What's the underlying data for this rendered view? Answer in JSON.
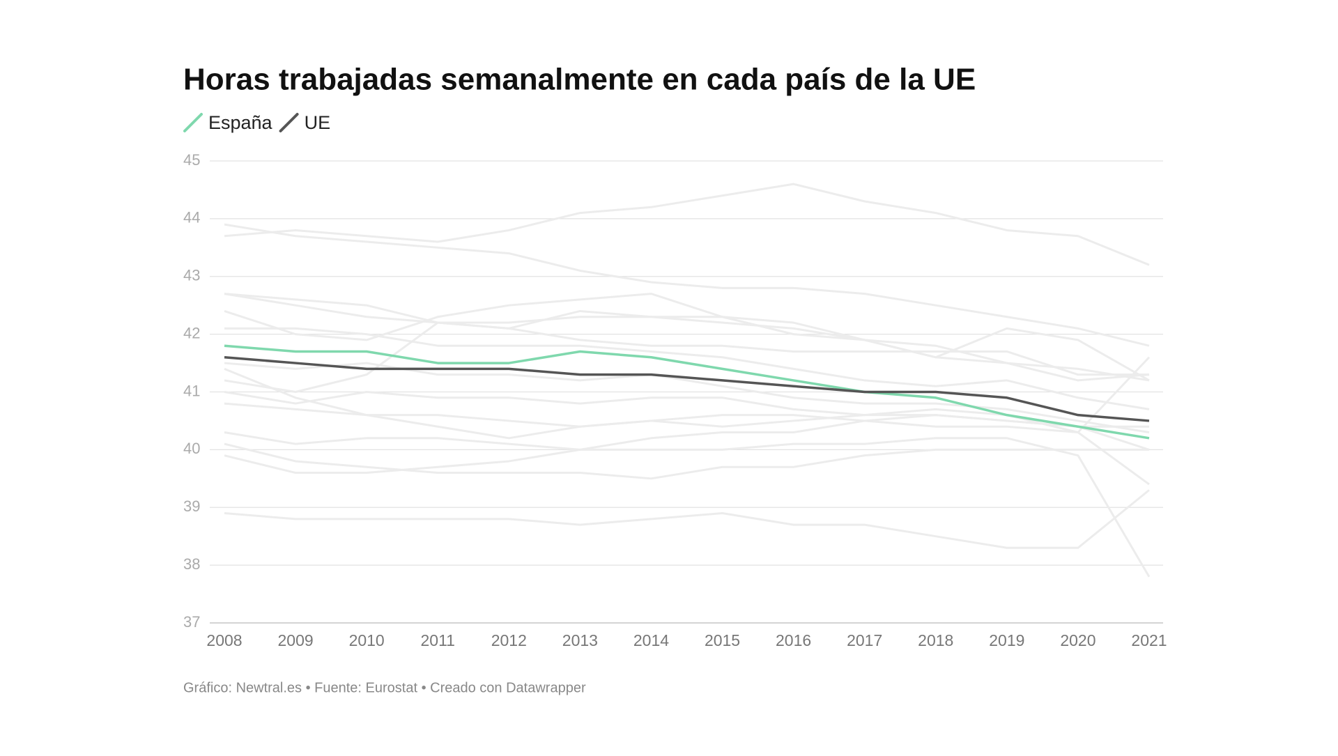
{
  "chart_data": {
    "type": "line",
    "title": "Horas trabajadas semanalmente en cada país de la UE",
    "categories": [
      "2008",
      "2009",
      "2010",
      "2011",
      "2012",
      "2013",
      "2014",
      "2015",
      "2016",
      "2017",
      "2018",
      "2019",
      "2020",
      "2021"
    ],
    "series": [
      {
        "color": "#ececec",
        "values": [
          43.7,
          43.8,
          43.7,
          43.6,
          43.8,
          44.1,
          44.2,
          44.4,
          44.6,
          44.3,
          44.1,
          43.8,
          43.7,
          43.2
        ]
      },
      {
        "color": "#ececec",
        "values": [
          43.9,
          43.7,
          43.6,
          43.5,
          43.4,
          43.1,
          42.9,
          42.8,
          42.8,
          42.7,
          42.5,
          42.3,
          42.1,
          41.8
        ]
      },
      {
        "color": "#ececec",
        "values": [
          42.7,
          42.6,
          42.5,
          42.2,
          42.1,
          41.9,
          41.8,
          41.8,
          41.7,
          41.7,
          41.7,
          41.7,
          41.3,
          41.3
        ]
      },
      {
        "color": "#ececec",
        "values": [
          42.7,
          42.5,
          42.3,
          42.2,
          42.2,
          42.3,
          42.3,
          42.3,
          42.0,
          41.9,
          41.8,
          41.5,
          41.4,
          41.2
        ]
      },
      {
        "color": "#ececec",
        "values": [
          42.4,
          42.0,
          41.9,
          42.3,
          42.5,
          42.6,
          42.7,
          42.3,
          42.2,
          41.9,
          41.6,
          41.5,
          41.2,
          41.3
        ]
      },
      {
        "color": "#ececec",
        "values": [
          41.2,
          41.0,
          41.3,
          42.2,
          42.1,
          42.4,
          42.3,
          42.2,
          42.1,
          41.9,
          41.6,
          42.1,
          41.9,
          41.2
        ]
      },
      {
        "color": "#ececec",
        "values": [
          42.1,
          42.1,
          42.0,
          41.8,
          41.8,
          41.8,
          41.7,
          41.6,
          41.4,
          41.2,
          41.1,
          41.2,
          40.9,
          40.7
        ]
      },
      {
        "color": "#ececec",
        "values": [
          41.4,
          40.9,
          40.6,
          40.4,
          40.2,
          40.4,
          40.5,
          40.6,
          40.6,
          40.5,
          40.4,
          40.4,
          40.3,
          39.4
        ]
      },
      {
        "color": "#ececec",
        "values": [
          40.3,
          40.1,
          40.2,
          40.2,
          40.1,
          40.0,
          40.0,
          40.0,
          40.1,
          40.1,
          40.2,
          40.2,
          39.9,
          37.8
        ]
      },
      {
        "color": "#ececec",
        "values": [
          38.9,
          38.8,
          38.8,
          38.8,
          38.8,
          38.7,
          38.8,
          38.9,
          38.7,
          38.7,
          38.5,
          38.3,
          38.3,
          39.3
        ]
      },
      {
        "color": "#ececec",
        "values": [
          39.9,
          39.6,
          39.6,
          39.7,
          39.8,
          40.0,
          40.2,
          40.3,
          40.3,
          40.5,
          40.6,
          40.5,
          40.4,
          40.0
        ]
      },
      {
        "color": "#ececec",
        "values": [
          40.1,
          39.8,
          39.7,
          39.6,
          39.6,
          39.6,
          39.5,
          39.7,
          39.7,
          39.9,
          40.0,
          40.0,
          40.0,
          40.0
        ]
      },
      {
        "color": "#ececec",
        "values": [
          41.0,
          40.8,
          41.0,
          40.9,
          40.9,
          40.8,
          40.9,
          40.9,
          40.7,
          40.6,
          40.6,
          40.5,
          40.4,
          40.4
        ]
      },
      {
        "color": "#ececec",
        "values": [
          40.8,
          40.7,
          40.6,
          40.6,
          40.5,
          40.4,
          40.5,
          40.4,
          40.5,
          40.6,
          40.7,
          40.6,
          40.3,
          41.6
        ]
      },
      {
        "color": "#ececec",
        "values": [
          41.5,
          41.4,
          41.5,
          41.3,
          41.3,
          41.2,
          41.3,
          41.1,
          40.9,
          40.8,
          40.8,
          40.7,
          40.5,
          40.3
        ]
      },
      {
        "name": "España",
        "color": "#7fd8ad",
        "values": [
          41.8,
          41.7,
          41.7,
          41.5,
          41.5,
          41.7,
          41.6,
          41.4,
          41.2,
          41.0,
          40.9,
          40.6,
          40.4,
          40.2
        ]
      },
      {
        "name": "UE",
        "color": "#555555",
        "values": [
          41.6,
          41.5,
          41.4,
          41.4,
          41.4,
          41.3,
          41.3,
          41.2,
          41.1,
          41.0,
          41.0,
          40.9,
          40.6,
          40.5
        ]
      }
    ],
    "ylim": [
      37,
      45
    ],
    "yticks": [
      37,
      38,
      39,
      40,
      41,
      42,
      43,
      44,
      45
    ],
    "grid": true,
    "source": "Gráfico: Newtral.es • Fuente: Eurostat • Creado con Datawrapper"
  }
}
